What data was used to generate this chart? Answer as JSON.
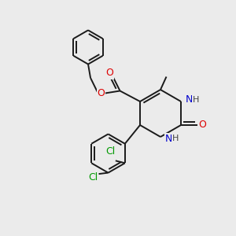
{
  "background_color": "#ebebeb",
  "bond_color": "#1a1a1a",
  "atom_colors": {
    "O": "#dd0000",
    "N": "#0000cc",
    "Cl": "#009900",
    "H": "#444444",
    "C": "#1a1a1a"
  },
  "figsize": [
    3.0,
    3.0
  ],
  "dpi": 100
}
